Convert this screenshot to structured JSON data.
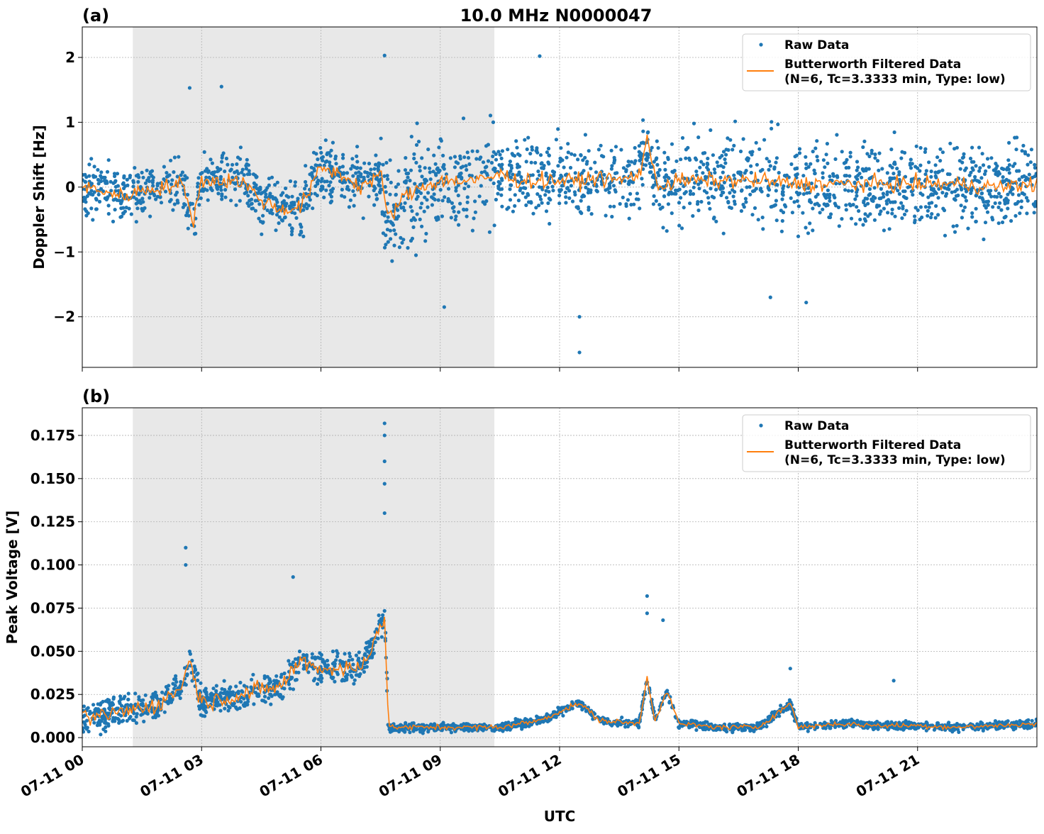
{
  "figure_title": "10.0 MHz N0000047",
  "colors": {
    "raw": "#1f77b4",
    "filtered": "#ff7f0e",
    "shade": "#e8e8e8",
    "grid": "#b0b0b0"
  },
  "chart_data": [
    {
      "type": "scatter",
      "panel_label": "(a)",
      "title": "10.0 MHz N0000047",
      "xlabel": "",
      "ylabel": "Doppler Shift [Hz]",
      "xlim_hours_utc": [
        0,
        24
      ],
      "ylim": [
        -2.78,
        2.47
      ],
      "yticks": [
        -2,
        -1,
        0,
        1,
        2
      ],
      "ytick_labels": [
        "−2",
        "−1",
        "0",
        "1",
        "2"
      ],
      "grid": true,
      "shaded_interval_hours_utc": [
        1.27,
        10.36
      ],
      "legend": {
        "position": "top-right",
        "entries": [
          "Raw Data",
          "Butterworth Filtered Data",
          "(N=6, Tc=3.3333 min, Type: low)"
        ]
      },
      "series": [
        {
          "name": "Butterworth Filtered Data",
          "kind": "line",
          "x_hours": [
            0,
            0.5,
            1,
            1.5,
            2,
            2.5,
            2.8,
            3,
            3.5,
            4,
            4.5,
            5,
            5.5,
            6,
            6.5,
            7,
            7.5,
            7.7,
            8,
            8.5,
            9,
            9.5,
            10,
            10.5,
            11,
            11.5,
            12,
            12.5,
            13,
            13.5,
            14,
            14.2,
            14.5,
            15,
            16,
            17,
            18,
            19,
            20,
            21,
            22,
            23,
            24
          ],
          "y": [
            0,
            -0.05,
            -0.15,
            -0.05,
            0,
            0.05,
            -0.5,
            0.1,
            0.1,
            0.1,
            -0.2,
            -0.35,
            -0.3,
            0.3,
            0.2,
            0,
            0.2,
            -0.5,
            -0.2,
            0,
            0.1,
            0.1,
            0.1,
            0.2,
            0.1,
            0.1,
            0.1,
            0.1,
            0.15,
            0.1,
            0.2,
            0.7,
            0,
            0.1,
            0.1,
            0.1,
            0.05,
            0.05,
            0.05,
            0.05,
            0.05,
            0,
            0.05
          ]
        },
        {
          "name": "Raw Data",
          "kind": "scatter",
          "spread_by_interval": [
            {
              "from": 0,
              "to": 7.5,
              "half_width": 0.5
            },
            {
              "from": 7.5,
              "to": 10.5,
              "half_width": 0.95
            },
            {
              "from": 10.5,
              "to": 14.5,
              "half_width": 0.7
            },
            {
              "from": 14.5,
              "to": 24,
              "half_width": 0.8
            }
          ],
          "outliers": [
            [
              2.7,
              1.53
            ],
            [
              3.5,
              1.55
            ],
            [
              7.6,
              2.03
            ],
            [
              11.5,
              2.02
            ],
            [
              12.5,
              -2.55
            ],
            [
              12.5,
              -2.0
            ],
            [
              9.1,
              -1.85
            ],
            [
              17.3,
              -1.7
            ],
            [
              18.2,
              -1.78
            ]
          ]
        }
      ]
    },
    {
      "type": "scatter",
      "panel_label": "(b)",
      "xlabel": "UTC",
      "ylabel": "Peak Voltage [V]",
      "xlim_hours_utc": [
        0,
        24
      ],
      "ylim": [
        -0.0053,
        0.191
      ],
      "yticks": [
        0,
        0.025,
        0.05,
        0.075,
        0.1,
        0.125,
        0.15,
        0.175
      ],
      "ytick_labels": [
        "0.000",
        "0.025",
        "0.050",
        "0.075",
        "0.100",
        "0.125",
        "0.150",
        "0.175"
      ],
      "xticks_hours": [
        0,
        3,
        6,
        9,
        12,
        15,
        18,
        21
      ],
      "xtick_labels": [
        "07-11 00",
        "07-11 03",
        "07-11 06",
        "07-11 09",
        "07-11 12",
        "07-11 15",
        "07-11 18",
        "07-11 21"
      ],
      "grid": true,
      "shaded_interval_hours_utc": [
        1.27,
        10.36
      ],
      "legend": {
        "position": "top-right",
        "entries": [
          "Raw Data",
          "Butterworth Filtered Data",
          "(N=6, Tc=3.3333 min, Type: low)"
        ]
      },
      "series": [
        {
          "name": "Butterworth Filtered Data",
          "kind": "line",
          "x_hours": [
            0,
            1,
            2,
            2.5,
            2.7,
            3,
            4,
            5,
            5.5,
            6,
            7,
            7.6,
            7.7,
            9,
            10.5,
            11.5,
            12.5,
            13,
            14,
            14.2,
            14.4,
            14.7,
            15,
            16,
            17,
            17.8,
            18,
            19,
            20,
            21,
            22,
            23,
            24
          ],
          "y": [
            0.01,
            0.015,
            0.02,
            0.03,
            0.045,
            0.02,
            0.025,
            0.03,
            0.045,
            0.04,
            0.04,
            0.07,
            0.006,
            0.006,
            0.006,
            0.01,
            0.02,
            0.01,
            0.008,
            0.035,
            0.01,
            0.027,
            0.008,
            0.006,
            0.006,
            0.02,
            0.006,
            0.008,
            0.007,
            0.007,
            0.006,
            0.007,
            0.008
          ]
        },
        {
          "name": "Raw Data",
          "kind": "scatter",
          "spread_by_interval": [
            {
              "from": 0,
              "to": 7.7,
              "half_width": 0.011
            },
            {
              "from": 7.7,
              "to": 24,
              "half_width": 0.003
            }
          ],
          "outliers": [
            [
              2.6,
              0.11
            ],
            [
              2.6,
              0.1
            ],
            [
              5.3,
              0.093
            ],
            [
              7.6,
              0.182
            ],
            [
              7.6,
              0.175
            ],
            [
              7.6,
              0.16
            ],
            [
              7.6,
              0.147
            ],
            [
              7.6,
              0.13
            ],
            [
              14.2,
              0.082
            ],
            [
              14.2,
              0.072
            ],
            [
              14.6,
              0.068
            ],
            [
              17.8,
              0.04
            ],
            [
              20.4,
              0.033
            ]
          ]
        }
      ]
    }
  ]
}
